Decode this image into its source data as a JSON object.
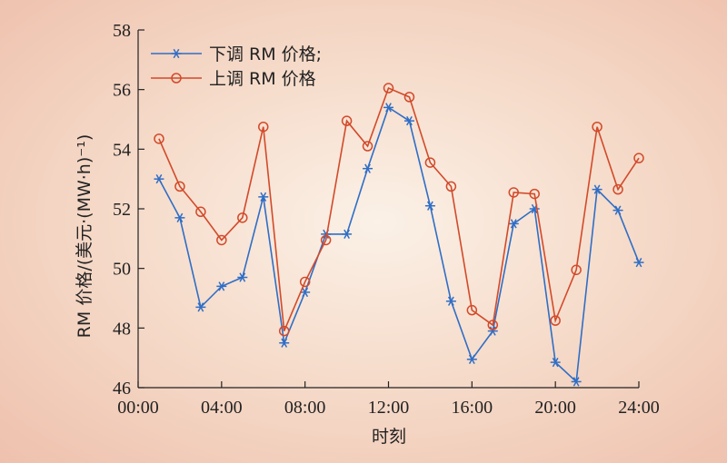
{
  "chart_data": {
    "type": "line",
    "xlabel": "时刻",
    "ylabel": "RM 价格/(美元·(MW·h)⁻¹)",
    "x_ticks": [
      "00:00",
      "04:00",
      "08:00",
      "12:00",
      "16:00",
      "20:00",
      "24:00"
    ],
    "xlim": [
      0,
      24
    ],
    "ylim": [
      46,
      58
    ],
    "y_ticks": [
      46,
      48,
      50,
      52,
      54,
      56,
      58
    ],
    "legend_position": "top-left",
    "x": [
      1,
      2,
      3,
      4,
      5,
      6,
      7,
      8,
      9,
      10,
      11,
      12,
      13,
      14,
      15,
      16,
      17,
      18,
      19,
      20,
      21,
      22,
      23,
      24
    ],
    "series": [
      {
        "name": "下调 RM 价格;",
        "color": "#2f6ec6",
        "marker": "asterisk",
        "values": [
          53.0,
          51.7,
          48.7,
          49.4,
          49.7,
          52.4,
          47.5,
          49.2,
          51.15,
          51.15,
          53.35,
          55.4,
          54.95,
          52.1,
          48.9,
          46.95,
          47.9,
          51.5,
          52.0,
          46.85,
          46.2,
          52.65,
          51.95,
          50.2
        ]
      },
      {
        "name": "上调 RM 价格",
        "color": "#d24a2a",
        "marker": "circle",
        "values": [
          54.35,
          52.75,
          51.9,
          50.95,
          51.7,
          54.75,
          47.9,
          49.55,
          50.95,
          54.95,
          54.1,
          56.05,
          55.75,
          53.55,
          52.75,
          48.6,
          48.1,
          52.55,
          52.5,
          48.25,
          49.95,
          54.75,
          52.65,
          53.7
        ]
      }
    ]
  }
}
